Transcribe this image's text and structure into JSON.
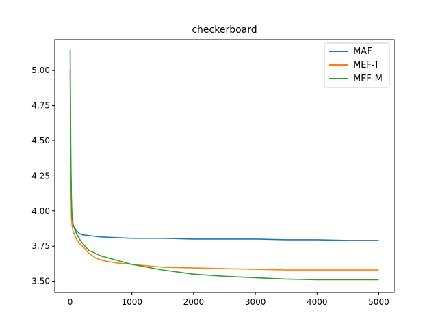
{
  "chart_data": {
    "type": "line",
    "title": "checkerboard",
    "xlabel": "",
    "ylabel": "",
    "xlim": [
      -250,
      5250
    ],
    "ylim": [
      3.42,
      5.22
    ],
    "xticks": [
      0,
      1000,
      2000,
      3000,
      4000,
      5000
    ],
    "xtick_labels": [
      "0",
      "1000",
      "2000",
      "3000",
      "4000",
      "5000"
    ],
    "yticks": [
      3.5,
      3.75,
      4.0,
      4.25,
      4.5,
      4.75,
      5.0
    ],
    "ytick_labels": [
      "3.50",
      "3.75",
      "4.00",
      "4.25",
      "4.50",
      "4.75",
      "5.00"
    ],
    "grid": false,
    "legend_position": "top-right",
    "series": [
      {
        "name": "MAF",
        "color": "#1f77b4",
        "x": [
          0,
          10,
          20,
          30,
          50,
          75,
          100,
          150,
          200,
          300,
          400,
          500,
          750,
          1000,
          1500,
          2000,
          2500,
          3000,
          3500,
          4000,
          4500,
          5000
        ],
        "y": [
          5.15,
          4.35,
          4.05,
          3.95,
          3.9,
          3.88,
          3.86,
          3.84,
          3.83,
          3.825,
          3.82,
          3.815,
          3.81,
          3.805,
          3.805,
          3.8,
          3.8,
          3.8,
          3.795,
          3.795,
          3.79,
          3.79
        ]
      },
      {
        "name": "MEF-T",
        "color": "#ff7f0e",
        "x": [
          0,
          10,
          20,
          30,
          50,
          75,
          100,
          150,
          200,
          300,
          400,
          500,
          750,
          1000,
          1500,
          2000,
          2500,
          3000,
          3500,
          4000,
          4500,
          5000
        ],
        "y": [
          5.0,
          4.3,
          3.95,
          3.9,
          3.85,
          3.83,
          3.8,
          3.77,
          3.75,
          3.7,
          3.67,
          3.65,
          3.63,
          3.62,
          3.6,
          3.595,
          3.59,
          3.585,
          3.58,
          3.58,
          3.58,
          3.58
        ]
      },
      {
        "name": "MEF-M",
        "color": "#2ca02c",
        "x": [
          0,
          10,
          20,
          30,
          50,
          75,
          100,
          150,
          200,
          300,
          400,
          500,
          750,
          1000,
          1500,
          2000,
          2500,
          3000,
          3500,
          4000,
          4500,
          5000
        ],
        "y": [
          5.0,
          4.4,
          4.1,
          3.95,
          3.9,
          3.87,
          3.84,
          3.8,
          3.77,
          3.72,
          3.7,
          3.68,
          3.65,
          3.62,
          3.58,
          3.55,
          3.535,
          3.525,
          3.515,
          3.51,
          3.51,
          3.51
        ]
      }
    ]
  }
}
